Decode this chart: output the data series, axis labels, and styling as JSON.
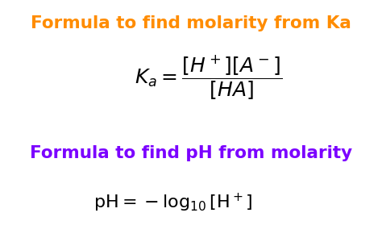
{
  "bg_color": "#ffffff",
  "title1": "Formula to find molarity from Ka",
  "title1_color": "#FF8C00",
  "title2": "Formula to find pH from molarity",
  "title2_color": "#7B00FF",
  "formula1_Ka": "$\\mathit{K_a} = \\dfrac{[\\mathit{H^+}][\\mathit{A^-}]}{[\\mathit{HA}]}$",
  "formula2_pH": "$\\mathrm{pH = -log_{10}\\,[H^+]}$",
  "formula1_color": "#000000",
  "formula2_color": "#000000",
  "figsize": [
    4.74,
    3.0
  ],
  "dpi": 100
}
